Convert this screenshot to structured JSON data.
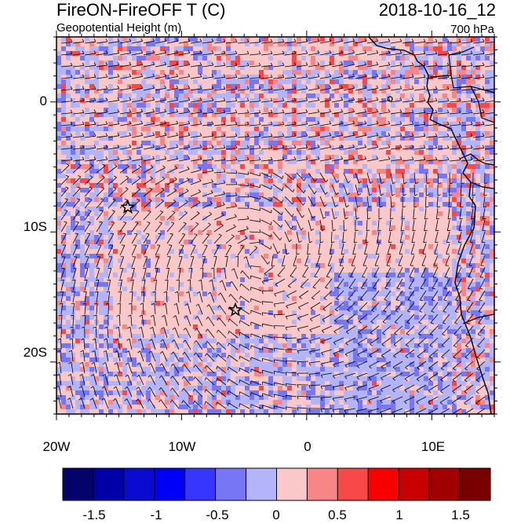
{
  "header": {
    "title": "FireON-FireOFF T (C)",
    "datetime": "2018-10-16_12",
    "subtitle": "Geopotential Height (m)",
    "level": "700 hPa"
  },
  "axes": {
    "y_ticks": [
      {
        "label": "0"
      },
      {
        "label": "10S"
      },
      {
        "label": "20S"
      }
    ],
    "x_ticks": [
      {
        "label": "20W"
      },
      {
        "label": "10W"
      },
      {
        "label": "0"
      },
      {
        "label": "10E"
      }
    ]
  },
  "markers": [
    {
      "name": "star-west",
      "lon": -14.3,
      "lat": -8.1
    },
    {
      "name": "star-center",
      "lon": -5.7,
      "lat": -16.0
    }
  ],
  "colorbar": {
    "colors": [
      "#04036b",
      "#0000a6",
      "#0a0ad0",
      "#0000f8",
      "#3636ff",
      "#7777f6",
      "#b4b4f8",
      "#fac8c8",
      "#f88686",
      "#f84848",
      "#f80000",
      "#c80000",
      "#a00000",
      "#780000"
    ],
    "labels": [
      "-1.5",
      "-1",
      "-0.5",
      "0",
      "0.5",
      "1",
      "1.5"
    ]
  },
  "chart_data": {
    "type": "heatmap",
    "title": "FireON-FireOFF T (C)",
    "subtitle": "Geopotential Height (m)",
    "datetime": "2018-10-16_12",
    "level": "700 hPa",
    "x_range_lon": [
      -20,
      15
    ],
    "y_range_lat": [
      -24,
      5
    ],
    "x_ticks": [
      "20W",
      "10W",
      "0",
      "10E"
    ],
    "y_ticks": [
      "0",
      "10S",
      "20S"
    ],
    "colorbar_levels": [
      -1.75,
      -1.5,
      -1.25,
      -1,
      -0.75,
      -0.5,
      -0.25,
      0,
      0.25,
      0.5,
      0.75,
      1,
      1.25,
      1.5,
      1.75
    ],
    "field_description_regions": [
      {
        "lon": [
          -20,
          15
        ],
        "lat": [
          -24,
          5
        ],
        "value": 0.1
      }
    ],
    "wind_barbs": true,
    "coastline": true
  }
}
